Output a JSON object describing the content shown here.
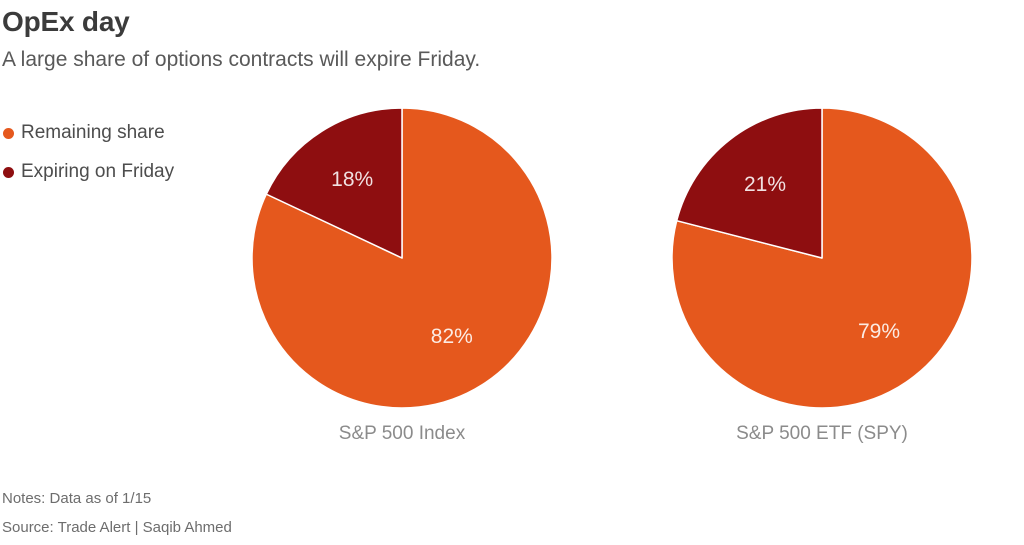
{
  "header": {
    "title": "OpEx day",
    "subtitle": "A large share of options contracts will expire Friday."
  },
  "legend": {
    "items": [
      {
        "label": "Remaining share",
        "color": "#e5581d"
      },
      {
        "label": "Expiring on Friday",
        "color": "#8e0e10"
      }
    ]
  },
  "chart_data": [
    {
      "type": "pie",
      "title": "S&P 500 Index",
      "labels": [
        "Remaining share",
        "Expiring on Friday"
      ],
      "values": [
        82,
        18
      ],
      "value_labels": [
        "82%",
        "18%"
      ],
      "colors": [
        "#e5581d",
        "#8e0e10"
      ],
      "start_angle_deg": 0,
      "direction": "clockwise",
      "legend_position": "left",
      "slice_separator_color": "#ffffff"
    },
    {
      "type": "pie",
      "title": "S&P 500 ETF (SPY)",
      "labels": [
        "Remaining share",
        "Expiring on Friday"
      ],
      "values": [
        79,
        21
      ],
      "value_labels": [
        "79%",
        "21%"
      ],
      "colors": [
        "#e5581d",
        "#8e0e10"
      ],
      "start_angle_deg": 0,
      "direction": "clockwise",
      "legend_position": "left",
      "slice_separator_color": "#ffffff"
    }
  ],
  "footer": {
    "notes": "Notes: Data as of 1/15",
    "source": "Source: Trade Alert | Saqib Ahmed"
  }
}
